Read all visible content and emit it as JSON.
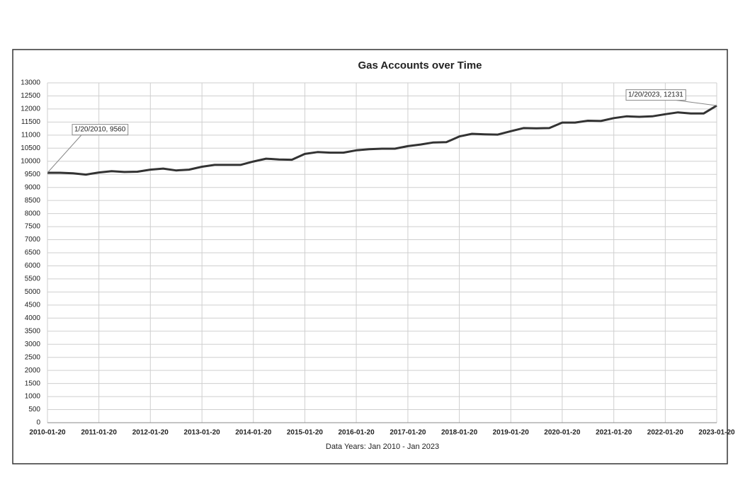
{
  "chart_data": {
    "type": "line",
    "title": "Gas Accounts over Time",
    "x_label": "Data Years: Jan 2010 - Jan 2023",
    "x": [
      "2010-01-20",
      "2010-04-20",
      "2010-07-20",
      "2010-10-20",
      "2011-01-20",
      "2011-04-20",
      "2011-07-20",
      "2011-10-20",
      "2012-01-20",
      "2012-04-20",
      "2012-07-20",
      "2012-10-20",
      "2013-01-20",
      "2013-04-20",
      "2013-07-20",
      "2013-10-20",
      "2014-01-20",
      "2014-04-20",
      "2014-07-20",
      "2014-10-20",
      "2015-01-20",
      "2015-04-20",
      "2015-07-20",
      "2015-10-20",
      "2016-01-20",
      "2016-04-20",
      "2016-07-20",
      "2016-10-20",
      "2017-01-20",
      "2017-04-20",
      "2017-07-20",
      "2017-10-20",
      "2018-01-20",
      "2018-04-20",
      "2018-07-20",
      "2018-10-20",
      "2019-01-20",
      "2019-04-20",
      "2019-07-20",
      "2019-10-20",
      "2020-01-20",
      "2020-04-20",
      "2020-07-20",
      "2020-10-20",
      "2021-01-20",
      "2021-04-20",
      "2021-07-20",
      "2021-10-20",
      "2022-01-20",
      "2022-04-20",
      "2022-07-20",
      "2022-10-20",
      "2023-01-20"
    ],
    "series": [
      {
        "name": "Gas Accounts",
        "color": "#333333",
        "values": [
          9560,
          9560,
          9540,
          9490,
          9570,
          9620,
          9590,
          9600,
          9680,
          9720,
          9650,
          9680,
          9790,
          9860,
          9860,
          9860,
          9990,
          10100,
          10070,
          10060,
          10280,
          10350,
          10330,
          10330,
          10420,
          10460,
          10480,
          10480,
          10580,
          10640,
          10720,
          10730,
          10950,
          11050,
          11030,
          11020,
          11150,
          11270,
          11260,
          11270,
          11480,
          11480,
          11550,
          11540,
          11650,
          11720,
          11700,
          11720,
          11800,
          11870,
          11830,
          11830,
          12131
        ]
      }
    ],
    "xlim": [
      "2010-01-20",
      "2023-01-20"
    ],
    "xticks": [
      "2010-01-20",
      "2011-01-20",
      "2012-01-20",
      "2013-01-20",
      "2014-01-20",
      "2015-01-20",
      "2016-01-20",
      "2017-01-20",
      "2018-01-20",
      "2019-01-20",
      "2020-01-20",
      "2021-01-20",
      "2022-01-20",
      "2023-01-20"
    ],
    "ylim": [
      0,
      13000
    ],
    "yticks": [
      0,
      500,
      1000,
      1500,
      2000,
      2500,
      3000,
      3500,
      4000,
      4500,
      5000,
      5500,
      6000,
      6500,
      7000,
      7500,
      8000,
      8500,
      9000,
      9500,
      10000,
      10500,
      11000,
      11500,
      12000,
      12500,
      13000
    ],
    "grid": true,
    "annotations": [
      "1/20/2010, 9560",
      "1/20/2023, 12131"
    ]
  }
}
